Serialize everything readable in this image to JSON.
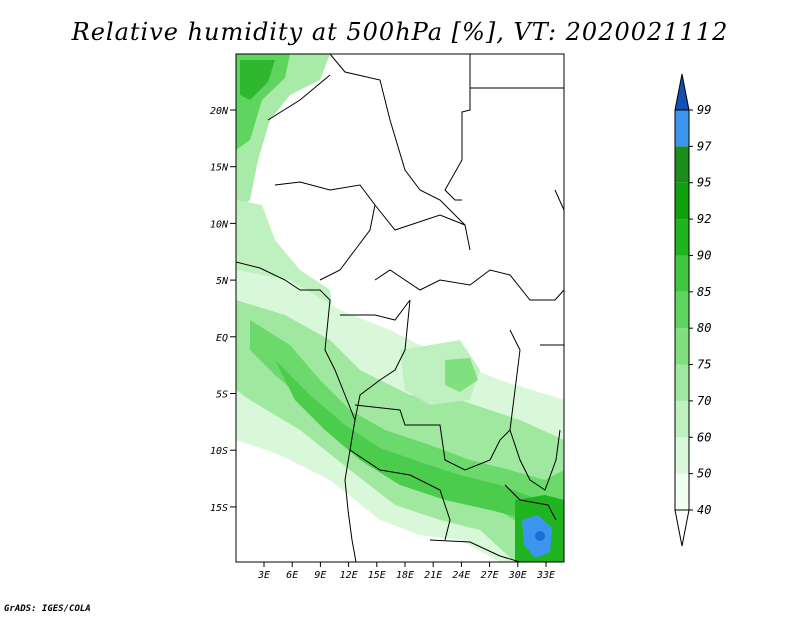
{
  "title": "Relative humidity at 500hPa [%], VT: 2020021112",
  "credit": "GrADS: IGES/COLA",
  "map": {
    "lat_ticks": [
      "20N",
      "15N",
      "10N",
      "5N",
      "EQ",
      "5S",
      "10S",
      "15S"
    ],
    "lon_ticks": [
      "3E",
      "6E",
      "9E",
      "12E",
      "15E",
      "18E",
      "21E",
      "24E",
      "27E",
      "30E",
      "33E"
    ]
  },
  "colorbar": {
    "labels": [
      "40",
      "50",
      "60",
      "70",
      "75",
      "80",
      "85",
      "90",
      "92",
      "95",
      "97",
      "99"
    ],
    "colors": [
      "#f0fff0",
      "#d9f8d9",
      "#bff0bf",
      "#a0e8a0",
      "#80e080",
      "#5fd45f",
      "#3fc83f",
      "#20b420",
      "#10a010",
      "#1c8c1c",
      "#3c96f0",
      "#1e6ed8",
      "#1450b4"
    ]
  }
}
